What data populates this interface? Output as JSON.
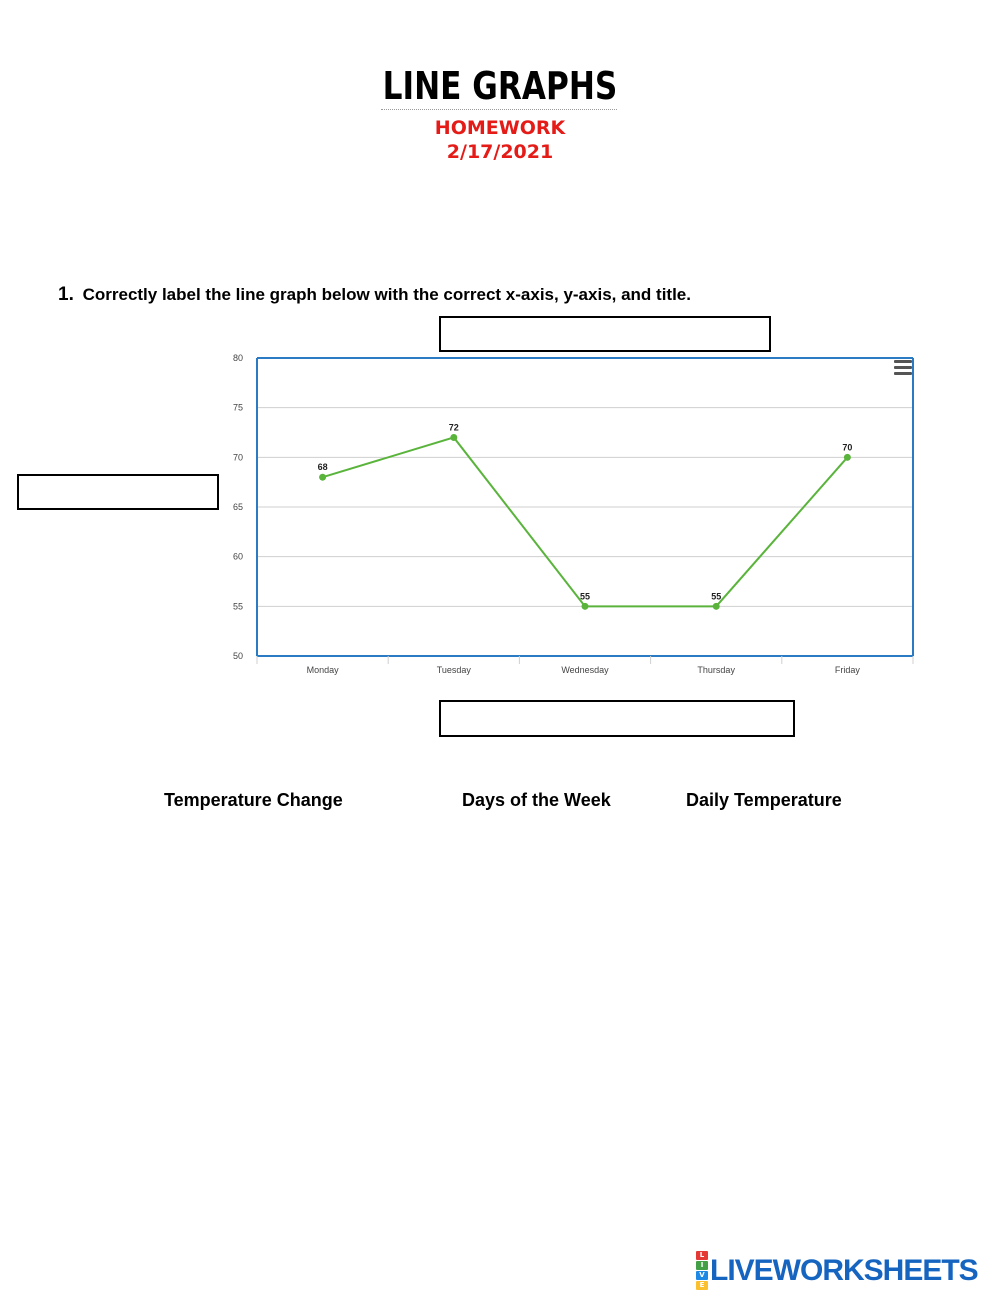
{
  "header": {
    "title": "LINE GRAPHS",
    "subtitle1": "HOMEWORK",
    "subtitle2": "2/17/2021"
  },
  "question": {
    "number": "1.",
    "text": "Correctly label the line graph below with the correct x-axis, y-axis, and title."
  },
  "colors": {
    "accent_red": "#e41b17",
    "line_green": "#5ab43c",
    "frame_blue": "#2b7bc4",
    "logo_blue": "#1565c0"
  },
  "chart_data": {
    "type": "line",
    "title": "",
    "xlabel": "",
    "ylabel": "",
    "categories": [
      "Monday",
      "Tuesday",
      "Wednesday",
      "Thursday",
      "Friday"
    ],
    "series": [
      {
        "values": [
          68,
          72,
          55,
          55,
          70
        ]
      }
    ],
    "ylim": [
      50,
      80
    ],
    "yticks": [
      50,
      55,
      60,
      65,
      70,
      75,
      80
    ],
    "grid": true,
    "data_labels": true
  },
  "choices": [
    "Temperature Change",
    "Days of the Week",
    "Daily Temperature"
  ],
  "icons": {
    "chart_menu": "hamburger-menu-icon"
  },
  "footer": {
    "logo_text": "LIVEWORKSHEETS"
  }
}
